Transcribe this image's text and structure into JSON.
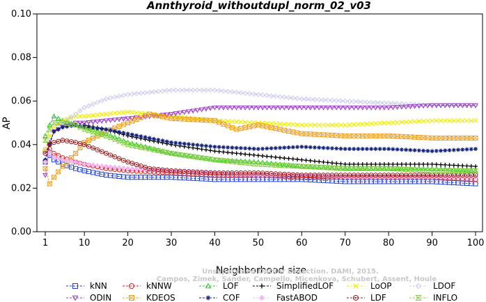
{
  "chart_data": {
    "type": "line",
    "title": "Annthyroid_withoutdupl_norm_02_v03",
    "xlabel": "Neighborhood size",
    "ylabel": "AP",
    "xlim": [
      1,
      100
    ],
    "ylim": [
      0.0,
      0.1
    ],
    "x_ticks": [
      1,
      10,
      20,
      30,
      40,
      50,
      60,
      70,
      80,
      90,
      100
    ],
    "y_ticks": [
      "0.00",
      "0.02",
      "0.04",
      "0.06",
      "0.08",
      "0.10"
    ],
    "grid": false,
    "legend_position": "bottom",
    "watermark_line1": "Unsupervised Outlier Detection. DAMI, 2015.",
    "watermark_line2": "Campos, Zimek, Sander, Campello, Micenkova, Schubert, Assent, Houle",
    "series": [
      {
        "name": "kNN",
        "color": "#1f3fd6",
        "marker": "square",
        "points": [
          [
            1,
            0.032
          ],
          [
            2,
            0.035
          ],
          [
            3,
            0.033
          ],
          [
            5,
            0.031
          ],
          [
            8,
            0.029
          ],
          [
            10,
            0.028
          ],
          [
            15,
            0.026
          ],
          [
            20,
            0.025
          ],
          [
            30,
            0.025
          ],
          [
            40,
            0.024
          ],
          [
            50,
            0.024
          ],
          [
            60,
            0.024
          ],
          [
            70,
            0.023
          ],
          [
            80,
            0.023
          ],
          [
            90,
            0.023
          ],
          [
            100,
            0.022
          ]
        ]
      },
      {
        "name": "kNNW",
        "color": "#e02020",
        "marker": "circle",
        "points": [
          [
            1,
            0.037
          ],
          [
            2,
            0.038
          ],
          [
            3,
            0.036
          ],
          [
            5,
            0.034
          ],
          [
            8,
            0.032
          ],
          [
            10,
            0.031
          ],
          [
            15,
            0.029
          ],
          [
            20,
            0.028
          ],
          [
            30,
            0.027
          ],
          [
            40,
            0.026
          ],
          [
            50,
            0.026
          ],
          [
            60,
            0.025
          ],
          [
            70,
            0.025
          ],
          [
            80,
            0.025
          ],
          [
            90,
            0.025
          ],
          [
            100,
            0.024
          ]
        ]
      },
      {
        "name": "LOF",
        "color": "#22cc22",
        "marker": "triangle-up",
        "points": [
          [
            1,
            0.044
          ],
          [
            2,
            0.049
          ],
          [
            3,
            0.053
          ],
          [
            5,
            0.051
          ],
          [
            8,
            0.049
          ],
          [
            10,
            0.048
          ],
          [
            15,
            0.045
          ],
          [
            20,
            0.041
          ],
          [
            30,
            0.036
          ],
          [
            40,
            0.033
          ],
          [
            50,
            0.032
          ],
          [
            60,
            0.03
          ],
          [
            70,
            0.029
          ],
          [
            80,
            0.029
          ],
          [
            90,
            0.029
          ],
          [
            100,
            0.028
          ]
        ]
      },
      {
        "name": "SimplifiedLOF",
        "color": "#000000",
        "marker": "plus",
        "points": [
          [
            1,
            0.033
          ],
          [
            2,
            0.041
          ],
          [
            3,
            0.046
          ],
          [
            5,
            0.048
          ],
          [
            8,
            0.049
          ],
          [
            10,
            0.049
          ],
          [
            15,
            0.047
          ],
          [
            20,
            0.044
          ],
          [
            30,
            0.04
          ],
          [
            40,
            0.037
          ],
          [
            50,
            0.035
          ],
          [
            60,
            0.033
          ],
          [
            70,
            0.031
          ],
          [
            80,
            0.031
          ],
          [
            90,
            0.031
          ],
          [
            100,
            0.03
          ]
        ]
      },
      {
        "name": "LoOP",
        "color": "#eeee00",
        "marker": "x",
        "points": [
          [
            1,
            0.038
          ],
          [
            2,
            0.044
          ],
          [
            3,
            0.048
          ],
          [
            5,
            0.051
          ],
          [
            8,
            0.053
          ],
          [
            10,
            0.053
          ],
          [
            15,
            0.054
          ],
          [
            20,
            0.055
          ],
          [
            30,
            0.053
          ],
          [
            40,
            0.051
          ],
          [
            50,
            0.05
          ],
          [
            60,
            0.049
          ],
          [
            70,
            0.049
          ],
          [
            80,
            0.05
          ],
          [
            90,
            0.051
          ],
          [
            100,
            0.051
          ]
        ]
      },
      {
        "name": "LDOF",
        "color": "#c8c8ee",
        "marker": "diamond",
        "points": [
          [
            1,
            0.038
          ],
          [
            2,
            0.042
          ],
          [
            3,
            0.046
          ],
          [
            5,
            0.05
          ],
          [
            8,
            0.054
          ],
          [
            10,
            0.057
          ],
          [
            15,
            0.061
          ],
          [
            20,
            0.063
          ],
          [
            30,
            0.065
          ],
          [
            40,
            0.065
          ],
          [
            50,
            0.063
          ],
          [
            60,
            0.061
          ],
          [
            70,
            0.06
          ],
          [
            80,
            0.059
          ],
          [
            90,
            0.058
          ],
          [
            100,
            0.058
          ]
        ]
      },
      {
        "name": "ODIN",
        "color": "#9932cc",
        "marker": "triangle-down",
        "points": [
          [
            1,
            0.026
          ],
          [
            2,
            0.04
          ],
          [
            3,
            0.046
          ],
          [
            5,
            0.048
          ],
          [
            8,
            0.05
          ],
          [
            10,
            0.05
          ],
          [
            15,
            0.051
          ],
          [
            20,
            0.052
          ],
          [
            30,
            0.054
          ],
          [
            40,
            0.057
          ],
          [
            50,
            0.057
          ],
          [
            60,
            0.057
          ],
          [
            70,
            0.057
          ],
          [
            80,
            0.057
          ],
          [
            90,
            0.058
          ],
          [
            100,
            0.058
          ]
        ]
      },
      {
        "name": "KDEOS",
        "color": "#f0a020",
        "marker": "boxed-x",
        "points": [
          [
            1,
            0.029
          ],
          [
            2,
            0.022
          ],
          [
            3,
            0.025
          ],
          [
            5,
            0.03
          ],
          [
            8,
            0.036
          ],
          [
            10,
            0.041
          ],
          [
            15,
            0.046
          ],
          [
            20,
            0.05
          ],
          [
            25,
            0.054
          ],
          [
            30,
            0.052
          ],
          [
            40,
            0.051
          ],
          [
            45,
            0.047
          ],
          [
            50,
            0.049
          ],
          [
            55,
            0.047
          ],
          [
            60,
            0.045
          ],
          [
            70,
            0.044
          ],
          [
            80,
            0.044
          ],
          [
            90,
            0.043
          ],
          [
            100,
            0.043
          ]
        ]
      },
      {
        "name": "COF",
        "color": "#10207a",
        "marker": "asterisk",
        "points": [
          [
            1,
            0.033
          ],
          [
            2,
            0.04
          ],
          [
            3,
            0.046
          ],
          [
            5,
            0.048
          ],
          [
            8,
            0.049
          ],
          [
            10,
            0.048
          ],
          [
            15,
            0.047
          ],
          [
            20,
            0.045
          ],
          [
            30,
            0.041
          ],
          [
            40,
            0.039
          ],
          [
            50,
            0.038
          ],
          [
            60,
            0.039
          ],
          [
            70,
            0.038
          ],
          [
            80,
            0.038
          ],
          [
            90,
            0.037
          ],
          [
            100,
            0.038
          ]
        ]
      },
      {
        "name": "FastABOD",
        "color": "#f6b8f0",
        "marker": "diamond-filled",
        "points": [
          [
            1,
            0.032
          ],
          [
            2,
            0.036
          ],
          [
            3,
            0.034
          ],
          [
            5,
            0.033
          ],
          [
            8,
            0.032
          ],
          [
            10,
            0.031
          ],
          [
            15,
            0.03
          ],
          [
            20,
            0.029
          ],
          [
            30,
            0.028
          ],
          [
            40,
            0.027
          ],
          [
            50,
            0.026
          ],
          [
            60,
            0.026
          ],
          [
            70,
            0.025
          ],
          [
            80,
            0.025
          ],
          [
            90,
            0.025
          ],
          [
            100,
            0.025
          ]
        ]
      },
      {
        "name": "LDF",
        "color": "#a01818",
        "marker": "circle-dot",
        "points": [
          [
            1,
            0.036
          ],
          [
            2,
            0.04
          ],
          [
            3,
            0.041
          ],
          [
            5,
            0.042
          ],
          [
            8,
            0.041
          ],
          [
            10,
            0.04
          ],
          [
            15,
            0.036
          ],
          [
            20,
            0.032
          ],
          [
            25,
            0.029
          ],
          [
            30,
            0.028
          ],
          [
            40,
            0.027
          ],
          [
            50,
            0.027
          ],
          [
            60,
            0.026
          ],
          [
            70,
            0.026
          ],
          [
            80,
            0.026
          ],
          [
            90,
            0.026
          ],
          [
            100,
            0.026
          ]
        ]
      },
      {
        "name": "INFLO",
        "color": "#88cc44",
        "marker": "hourglass",
        "points": [
          [
            1,
            0.042
          ],
          [
            2,
            0.047
          ],
          [
            3,
            0.05
          ],
          [
            5,
            0.05
          ],
          [
            8,
            0.049
          ],
          [
            10,
            0.047
          ],
          [
            15,
            0.044
          ],
          [
            20,
            0.04
          ],
          [
            30,
            0.036
          ],
          [
            40,
            0.033
          ],
          [
            50,
            0.031
          ],
          [
            60,
            0.03
          ],
          [
            70,
            0.029
          ],
          [
            80,
            0.029
          ],
          [
            90,
            0.028
          ],
          [
            100,
            0.028
          ]
        ]
      }
    ]
  }
}
